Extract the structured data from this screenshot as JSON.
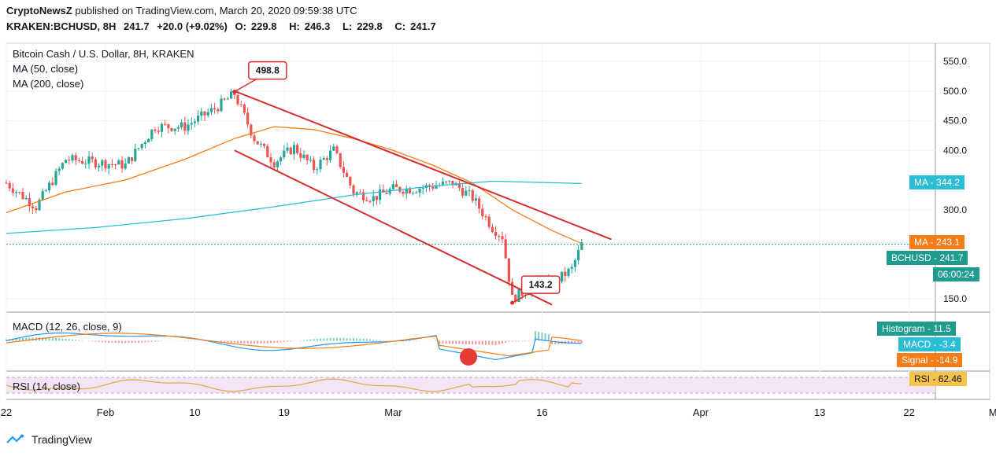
{
  "header": {
    "publisher": "CryptoNewsZ",
    "published_text": "published on TradingView.com, March 20, 2020 09:59:38 UTC",
    "symbol": "KRAKEN:BCHUSD, 8H",
    "last": "241.7",
    "change": "+20.0 (+9.02%)",
    "open_label": "O:",
    "open": "229.8",
    "high_label": "H:",
    "high": "246.3",
    "low_label": "L:",
    "low": "229.8",
    "close_label": "C:",
    "close": "241.7"
  },
  "legend": {
    "title": "Bitcoin Cash / U.S. Dollar, 8H, KRAKEN",
    "ma50": "MA (50, close)",
    "ma200": "MA (200, close)",
    "macd": "MACD (12, 26, close, 9)",
    "rsi": "RSI (14, close)"
  },
  "tags": {
    "ma_main": {
      "label": "MA",
      "value": "344.2",
      "color": "#2bbdd6"
    },
    "ma_fast": {
      "label": "MA",
      "value": "243.1",
      "color": "#f57c16"
    },
    "price": {
      "label": "BCHUSD",
      "value": "241.7",
      "color": "#1f9c8e"
    },
    "countdown": {
      "value": "06:00:24",
      "color": "#1f9c8e"
    },
    "histogram": {
      "label": "Histogram",
      "value": "11.5",
      "color": "#1f9c8e"
    },
    "macd": {
      "label": "MACD",
      "value": "-3.4",
      "color": "#2bbdd6"
    },
    "signal": {
      "label": "Signal",
      "value": "-14.9",
      "color": "#f57c16"
    },
    "rsi": {
      "label": "RSI",
      "value": "62.46",
      "color": "#f5c24a"
    }
  },
  "callouts": {
    "high": "498.8",
    "low": "143.2"
  },
  "footer": {
    "brand": "TradingView"
  },
  "colors": {
    "up": "#26a69a",
    "down": "#ef5350",
    "ma50": "#f57c16",
    "ma200": "#2bbdd6",
    "trend": "#d32f2f",
    "macd_line": "#2196f3",
    "signal_line": "#f57c16",
    "rsi_line": "#e0a64a",
    "rsi_band": "#f3e5f5"
  },
  "chart_data": {
    "type": "line",
    "title": "Bitcoin Cash / U.S. Dollar, 8H, KRAKEN",
    "ylim": [
      125,
      570
    ],
    "y_ticks": [
      "550.0",
      "500.0",
      "450.0",
      "400.0",
      "300.0",
      "150.0"
    ],
    "x_ticks": [
      "22",
      "Feb",
      "10",
      "19",
      "Mar",
      "16",
      "Apr",
      "13",
      "22",
      "May"
    ],
    "series": [
      {
        "name": "BCHUSD",
        "x": [
          "2020-01-22",
          "2020-01-25",
          "2020-01-28",
          "2020-01-31",
          "2020-02-03",
          "2020-02-06",
          "2020-02-09",
          "2020-02-12",
          "2020-02-14",
          "2020-02-16",
          "2020-02-18",
          "2020-02-20",
          "2020-02-22",
          "2020-02-24",
          "2020-02-26",
          "2020-02-28",
          "2020-03-01",
          "2020-03-03",
          "2020-03-05",
          "2020-03-07",
          "2020-03-09",
          "2020-03-11",
          "2020-03-12",
          "2020-03-13",
          "2020-03-15",
          "2020-03-17",
          "2020-03-19",
          "2020-03-20"
        ],
        "values": [
          345,
          305,
          385,
          380,
          375,
          440,
          440,
          470,
          495,
          420,
          380,
          405,
          370,
          400,
          330,
          320,
          335,
          335,
          340,
          345,
          320,
          270,
          255,
          150,
          170,
          175,
          200,
          241.7
        ]
      },
      {
        "name": "MA (50, close)",
        "x": [
          "2020-01-22",
          "2020-01-28",
          "2020-02-03",
          "2020-02-09",
          "2020-02-14",
          "2020-02-18",
          "2020-02-22",
          "2020-02-26",
          "2020-03-01",
          "2020-03-05",
          "2020-03-09",
          "2020-03-13",
          "2020-03-17",
          "2020-03-20"
        ],
        "values": [
          295,
          330,
          350,
          385,
          420,
          440,
          435,
          420,
          400,
          375,
          345,
          300,
          265,
          243.1
        ]
      },
      {
        "name": "MA (200, close)",
        "x": [
          "2020-01-22",
          "2020-01-31",
          "2020-02-09",
          "2020-02-18",
          "2020-02-26",
          "2020-03-05",
          "2020-03-11",
          "2020-03-20"
        ],
        "values": [
          260,
          270,
          285,
          305,
          325,
          340,
          348,
          344.2
        ]
      }
    ],
    "annotations": [
      {
        "text": "498.8",
        "date": "2020-02-14",
        "value": 498.8
      },
      {
        "text": "143.2",
        "date": "2020-03-13",
        "value": 143.2
      }
    ],
    "trend_lines": [
      {
        "from": [
          "2020-02-14",
          500
        ],
        "to": [
          "2020-03-23",
          250
        ]
      },
      {
        "from": [
          "2020-02-14",
          400
        ],
        "to": [
          "2020-03-17",
          140
        ]
      }
    ]
  }
}
